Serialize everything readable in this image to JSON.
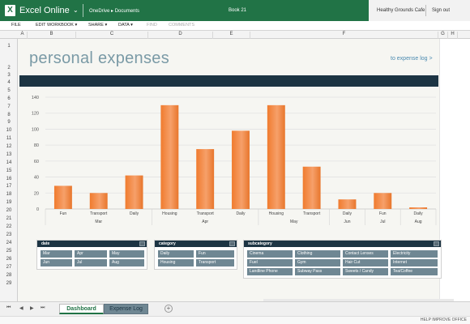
{
  "app": {
    "name": "Excel Online",
    "breadcrumb": "OneDrive ▸ Documents",
    "doc_title": "Book 21",
    "user": "Healthy Grounds Cafe",
    "sign_out": "Sign out",
    "brand_color": "#217346"
  },
  "menu": [
    "FILE",
    "EDIT WORKBOOK ▾",
    "SHARE ▾",
    "DATA ▾",
    "FIND",
    "COMMENTS"
  ],
  "columns": [
    "A",
    "B",
    "C",
    "D",
    "E",
    "F",
    "G",
    "H"
  ],
  "rows": [
    "1",
    "2",
    "3",
    "4",
    "5",
    "6",
    "7",
    "8",
    "9",
    "10",
    "11",
    "12",
    "13",
    "14",
    "15",
    "16",
    "17",
    "18",
    "19",
    "20",
    "21",
    "22",
    "23",
    "24",
    "25",
    "26",
    "27",
    "28",
    "29"
  ],
  "sheet": {
    "heading": "personal expenses",
    "link": "to expense log >"
  },
  "chart_data": {
    "type": "bar",
    "categories": [
      "Fun",
      "Transport",
      "Daily",
      "Housing",
      "Transport",
      "Daily",
      "Housing",
      "Transport",
      "Daily",
      "Fun",
      "Daily"
    ],
    "groups": [
      {
        "label": "Mar",
        "count": 3
      },
      {
        "label": "Apr",
        "count": 3
      },
      {
        "label": "May",
        "count": 2
      },
      {
        "label": "Jun",
        "count": 1
      },
      {
        "label": "Jul",
        "count": 1
      },
      {
        "label": "Aug",
        "count": 1
      }
    ],
    "values": [
      29,
      20,
      42,
      130,
      75,
      98,
      130,
      53,
      12,
      20,
      2
    ],
    "yticks": [
      0,
      20,
      40,
      60,
      80,
      100,
      120,
      140
    ],
    "ylim": [
      0,
      140
    ],
    "bar_color": "#f07b2e",
    "title": "",
    "xlabel": "",
    "ylabel": ""
  },
  "slicers": {
    "date": {
      "title": "date",
      "items": [
        "Mar",
        "Apr",
        "May",
        "Jun",
        "Jul",
        "Aug"
      ]
    },
    "category": {
      "title": "category",
      "items": [
        "Daily",
        "Fun",
        "Housing",
        "Transport"
      ]
    },
    "subcategory": {
      "title": "subcategory",
      "items": [
        "Cinema",
        "Clothing",
        "Contact Lenses",
        "Electricity",
        "Fuel",
        "Gym",
        "Hair Cut",
        "Internet",
        "Landline Phone",
        "Subway Pass",
        "Sweets / Candy",
        "Tea/Coffee"
      ]
    }
  },
  "tabs": [
    "Dashboard",
    "Expense Log"
  ],
  "status": "HELP IMPROVE OFFICE"
}
